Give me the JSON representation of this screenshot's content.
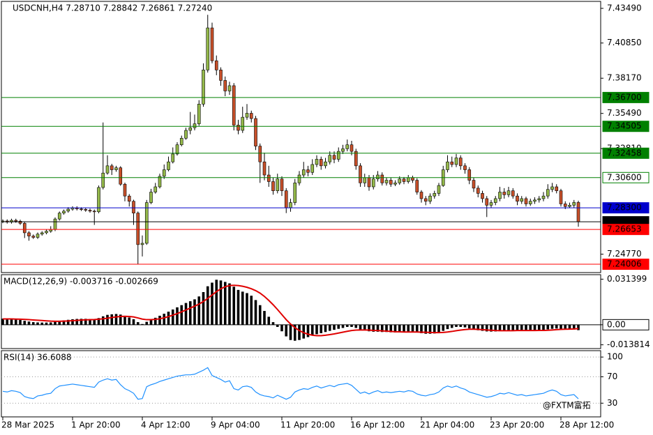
{
  "chart_data": [
    {
      "type": "candlestick",
      "title": "USDCNH,H4  7.28710 7.28842 7.26861 7.27240",
      "watermark": "@FXTM富拓",
      "categories": [
        "28 Mar 2025",
        null,
        null,
        null,
        null,
        null,
        null,
        null,
        null,
        null,
        null,
        null,
        null,
        null,
        null,
        null,
        "1 Apr 20:00",
        null,
        null,
        null,
        null,
        null,
        null,
        null,
        null,
        null,
        null,
        null,
        null,
        null,
        null,
        null,
        "4 Apr 12:00",
        null,
        null,
        null,
        null,
        null,
        null,
        null,
        null,
        null,
        null,
        null,
        null,
        null,
        null,
        null,
        "9 Apr 04:00",
        null,
        null,
        null,
        null,
        null,
        null,
        null,
        null,
        null,
        null,
        null,
        null,
        null,
        null,
        null,
        "11 Apr 20:00",
        null,
        null,
        null,
        null,
        null,
        null,
        null,
        null,
        null,
        null,
        null,
        null,
        null,
        null,
        null,
        "16 Apr 12:00",
        null,
        null,
        null,
        null,
        null,
        null,
        null,
        null,
        null,
        null,
        null,
        null,
        null,
        null,
        null,
        "21 Apr 04:00",
        null,
        null,
        null,
        null,
        null,
        null,
        null,
        null,
        null,
        null,
        null,
        null,
        null,
        null,
        null,
        "23 Apr 20:00",
        null,
        null,
        null,
        null,
        null,
        null,
        null,
        null,
        null,
        null,
        null,
        null,
        null,
        null,
        null,
        "28 Apr 12:00",
        null,
        null,
        null,
        null
      ],
      "open": [
        7.2725,
        7.273,
        7.2722,
        7.2735,
        7.2728,
        7.2712,
        7.264,
        7.2615,
        7.2605,
        7.263,
        7.264,
        7.2652,
        7.2665,
        7.2745,
        7.279,
        7.2805,
        7.282,
        7.283,
        7.2822,
        7.2818,
        7.2812,
        7.2805,
        7.28,
        7.2985,
        7.3095,
        7.315,
        7.312,
        7.3135,
        7.301,
        7.292,
        7.288,
        7.279,
        7.255,
        7.256,
        7.287,
        7.295,
        7.299,
        7.307,
        7.312,
        7.318,
        7.324,
        7.331,
        7.336,
        7.342,
        7.344,
        7.347,
        7.362,
        7.388,
        7.42,
        7.395,
        7.388,
        7.38,
        7.372,
        7.376,
        7.346,
        7.342,
        7.352,
        7.355,
        7.351,
        7.33,
        7.318,
        7.308,
        7.303,
        7.296,
        7.305,
        7.296,
        7.283,
        7.287,
        7.302,
        7.308,
        7.312,
        7.31,
        7.316,
        7.32,
        7.315,
        7.318,
        7.323,
        7.32,
        7.326,
        7.328,
        7.331,
        7.326,
        7.315,
        7.302,
        7.306,
        7.299,
        7.305,
        7.308,
        7.302,
        7.304,
        7.301,
        7.302,
        7.305,
        7.303,
        7.306,
        7.304,
        7.295,
        7.29,
        7.288,
        7.292,
        7.294,
        7.3,
        7.312,
        7.318,
        7.316,
        7.321,
        7.315,
        7.312,
        7.304,
        7.298,
        7.294,
        7.29,
        7.285,
        7.287,
        7.29,
        7.295,
        7.293,
        7.296,
        7.292,
        7.288,
        7.29,
        7.286,
        7.288,
        7.289,
        7.29,
        7.292,
        7.297,
        7.299,
        7.296,
        7.286,
        7.284,
        7.285,
        7.2871
      ],
      "high": [
        7.2742,
        7.2742,
        7.2747,
        7.2747,
        7.274,
        7.2724,
        7.2652,
        7.2627,
        7.2642,
        7.2652,
        7.2664,
        7.269,
        7.2757,
        7.2802,
        7.2817,
        7.2835,
        7.2842,
        7.2842,
        7.2834,
        7.283,
        7.2824,
        7.2817,
        7.3,
        7.348,
        7.323,
        7.3165,
        7.315,
        7.3147,
        7.3022,
        7.2935,
        7.2892,
        7.2802,
        7.262,
        7.289,
        7.2975,
        7.302,
        7.309,
        7.316,
        7.322,
        7.329,
        7.333,
        7.338,
        7.344,
        7.356,
        7.354,
        7.365,
        7.393,
        7.43,
        7.424,
        7.399,
        7.39,
        7.383,
        7.379,
        7.378,
        7.35,
        7.36,
        7.362,
        7.357,
        7.353,
        7.332,
        7.325,
        7.315,
        7.306,
        7.309,
        7.307,
        7.298,
        7.29,
        7.305,
        7.311,
        7.318,
        7.315,
        7.32,
        7.323,
        7.322,
        7.321,
        7.326,
        7.326,
        7.329,
        7.331,
        7.335,
        7.334,
        7.328,
        7.317,
        7.309,
        7.308,
        7.308,
        7.311,
        7.31,
        7.306,
        7.306,
        7.304,
        7.307,
        7.3065,
        7.308,
        7.3075,
        7.3055,
        7.2965,
        7.292,
        7.294,
        7.296,
        7.302,
        7.315,
        7.323,
        7.322,
        7.324,
        7.323,
        7.317,
        7.314,
        7.306,
        7.3,
        7.296,
        7.292,
        7.289,
        7.292,
        7.299,
        7.298,
        7.299,
        7.298,
        7.294,
        7.292,
        7.2915,
        7.29,
        7.291,
        7.292,
        7.295,
        7.301,
        7.302,
        7.301,
        7.2975,
        7.288,
        7.287,
        7.289,
        7.28842
      ],
      "low": [
        7.2713,
        7.271,
        7.271,
        7.2716,
        7.27,
        7.26,
        7.258,
        7.2593,
        7.2593,
        7.2618,
        7.2628,
        7.264,
        7.2653,
        7.2733,
        7.2778,
        7.2793,
        7.2808,
        7.281,
        7.2806,
        7.28,
        7.2793,
        7.27,
        7.2788,
        7.297,
        7.3083,
        7.308,
        7.3105,
        7.2998,
        7.288,
        7.284,
        7.27,
        7.24,
        7.246,
        7.2548,
        7.2858,
        7.2938,
        7.2978,
        7.305,
        7.3108,
        7.3168,
        7.3228,
        7.3298,
        7.3348,
        7.339,
        7.342,
        7.3455,
        7.36,
        7.386,
        7.393,
        7.384,
        7.376,
        7.368,
        7.369,
        7.342,
        7.339,
        7.34,
        7.35,
        7.348,
        7.327,
        7.302,
        7.304,
        7.299,
        7.293,
        7.294,
        7.292,
        7.279,
        7.28,
        7.285,
        7.3,
        7.306,
        7.307,
        7.308,
        7.314,
        7.312,
        7.313,
        7.316,
        7.317,
        7.318,
        7.324,
        7.326,
        7.323,
        7.312,
        7.299,
        7.299,
        7.296,
        7.297,
        7.303,
        7.3,
        7.3,
        7.299,
        7.2995,
        7.3005,
        7.301,
        7.3015,
        7.302,
        7.293,
        7.287,
        7.285,
        7.286,
        7.29,
        7.292,
        7.299,
        7.31,
        7.314,
        7.314,
        7.312,
        7.309,
        7.301,
        7.295,
        7.291,
        7.287,
        7.276,
        7.283,
        7.285,
        7.288,
        7.29,
        7.291,
        7.29,
        7.285,
        7.286,
        7.284,
        7.2845,
        7.286,
        7.287,
        7.288,
        7.29,
        7.295,
        7.294,
        7.284,
        7.282,
        7.283,
        7.283,
        7.26861
      ],
      "close": [
        7.273,
        7.2722,
        7.2735,
        7.2728,
        7.2712,
        7.264,
        7.2615,
        7.2605,
        7.263,
        7.264,
        7.2652,
        7.2665,
        7.2745,
        7.279,
        7.2805,
        7.282,
        7.283,
        7.2822,
        7.2818,
        7.2812,
        7.2805,
        7.28,
        7.2985,
        7.3095,
        7.315,
        7.312,
        7.3135,
        7.301,
        7.292,
        7.288,
        7.279,
        7.255,
        7.256,
        7.287,
        7.295,
        7.299,
        7.307,
        7.312,
        7.318,
        7.324,
        7.331,
        7.336,
        7.342,
        7.344,
        7.347,
        7.362,
        7.388,
        7.42,
        7.395,
        7.388,
        7.38,
        7.372,
        7.376,
        7.346,
        7.342,
        7.352,
        7.355,
        7.351,
        7.33,
        7.318,
        7.308,
        7.303,
        7.296,
        7.305,
        7.296,
        7.283,
        7.287,
        7.302,
        7.308,
        7.312,
        7.31,
        7.316,
        7.32,
        7.315,
        7.318,
        7.323,
        7.32,
        7.326,
        7.328,
        7.331,
        7.326,
        7.315,
        7.302,
        7.306,
        7.299,
        7.305,
        7.308,
        7.302,
        7.304,
        7.301,
        7.302,
        7.305,
        7.303,
        7.306,
        7.304,
        7.295,
        7.29,
        7.288,
        7.292,
        7.294,
        7.3,
        7.312,
        7.318,
        7.316,
        7.321,
        7.315,
        7.312,
        7.304,
        7.298,
        7.294,
        7.29,
        7.285,
        7.287,
        7.29,
        7.295,
        7.293,
        7.296,
        7.292,
        7.288,
        7.29,
        7.286,
        7.288,
        7.289,
        7.29,
        7.292,
        7.297,
        7.299,
        7.296,
        7.286,
        7.284,
        7.285,
        7.2871,
        7.2724
      ],
      "up_color": "#94b84a",
      "down_color": "#c8502a",
      "ylim": [
        7.2337,
        7.4402
      ],
      "yticks": [
        {
          "value": 7.4349,
          "label": "7.43490"
        },
        {
          "value": 7.4085,
          "label": "7.40850"
        },
        {
          "value": 7.3817,
          "label": "7.38170"
        },
        {
          "value": 7.3549,
          "label": "7.35490"
        },
        {
          "value": 7.3281,
          "label": "7.32810"
        },
        {
          "value": 7.2477,
          "label": "7.24770"
        }
      ],
      "levels": [
        {
          "value": 7.367,
          "label": "7.36700",
          "color": "#008000",
          "style": "filled"
        },
        {
          "value": 7.34505,
          "label": "7.34505",
          "color": "#008000",
          "style": "filled"
        },
        {
          "value": 7.32458,
          "label": "7.32458",
          "color": "#008000",
          "style": "filled"
        },
        {
          "value": 7.306,
          "label": "7.30600",
          "color": "#008000",
          "style": "outline"
        },
        {
          "value": 7.283,
          "label": "7.28300",
          "color": "#0000cc",
          "style": "filled"
        },
        {
          "value": 7.2724,
          "label": "7.27240",
          "color": "#000000",
          "style": "filled"
        },
        {
          "value": 7.26653,
          "label": "7.26653",
          "color": "#ff0000",
          "style": "filled"
        },
        {
          "value": 7.24006,
          "label": "7.24006",
          "color": "#ff0000",
          "style": "filled"
        }
      ]
    },
    {
      "type": "macd",
      "title": "MACD(12,26,9) -0.003716 -0.002669",
      "histogram": [
        0.0042,
        0.004,
        0.0038,
        0.0036,
        0.0033,
        0.0027,
        0.0022,
        0.0018,
        0.0016,
        0.0015,
        0.0015,
        0.0016,
        0.002,
        0.0025,
        0.003,
        0.0034,
        0.0038,
        0.004,
        0.0041,
        0.0041,
        0.004,
        0.0038,
        0.0046,
        0.0058,
        0.0068,
        0.0072,
        0.0074,
        0.007,
        0.006,
        0.005,
        0.0038,
        0.0018,
        0.0005,
        0.002,
        0.0035,
        0.0048,
        0.0062,
        0.0076,
        0.009,
        0.0105,
        0.012,
        0.0135,
        0.015,
        0.0162,
        0.0175,
        0.0195,
        0.0225,
        0.0265,
        0.029,
        0.031,
        0.0305,
        0.0295,
        0.0285,
        0.0262,
        0.024,
        0.0228,
        0.0218,
        0.02,
        0.017,
        0.0135,
        0.0095,
        0.0055,
        0.0018,
        -0.0015,
        -0.0045,
        -0.008,
        -0.0105,
        -0.011,
        -0.0105,
        -0.0095,
        -0.0085,
        -0.0075,
        -0.0065,
        -0.0058,
        -0.005,
        -0.0042,
        -0.0035,
        -0.0028,
        -0.0022,
        -0.0015,
        -0.0015,
        -0.0022,
        -0.0032,
        -0.0038,
        -0.0045,
        -0.0048,
        -0.0048,
        -0.005,
        -0.005,
        -0.0052,
        -0.0053,
        -0.0052,
        -0.005,
        -0.0048,
        -0.0048,
        -0.0052,
        -0.0058,
        -0.0062,
        -0.0062,
        -0.006,
        -0.0055,
        -0.0042,
        -0.003,
        -0.0022,
        -0.0015,
        -0.0015,
        -0.0018,
        -0.0025,
        -0.0032,
        -0.0038,
        -0.0042,
        -0.0046,
        -0.0047,
        -0.0046,
        -0.0043,
        -0.0041,
        -0.0038,
        -0.0038,
        -0.004,
        -0.004,
        -0.0041,
        -0.004,
        -0.0039,
        -0.0038,
        -0.0036,
        -0.0032,
        -0.0028,
        -0.0026,
        -0.003,
        -0.0033,
        -0.0034,
        -0.0033,
        -0.003716
      ],
      "signal": [
        0.004,
        0.004,
        0.004,
        0.0039,
        0.0038,
        0.0037,
        0.0035,
        0.0033,
        0.0031,
        0.0029,
        0.0027,
        0.0025,
        0.0024,
        0.0024,
        0.0025,
        0.0026,
        0.0028,
        0.003,
        0.0032,
        0.0034,
        0.0035,
        0.0036,
        0.0038,
        0.0041,
        0.0045,
        0.005,
        0.0054,
        0.0057,
        0.0058,
        0.0057,
        0.0054,
        0.0047,
        0.0039,
        0.0035,
        0.0035,
        0.0037,
        0.0041,
        0.0048,
        0.0056,
        0.0066,
        0.0077,
        0.0089,
        0.0102,
        0.0115,
        0.0128,
        0.0142,
        0.016,
        0.0182,
        0.0205,
        0.0228,
        0.0248,
        0.0262,
        0.027,
        0.0272,
        0.027,
        0.0265,
        0.0258,
        0.0248,
        0.0235,
        0.0218,
        0.0195,
        0.0168,
        0.0138,
        0.0105,
        0.007,
        0.0035,
        0.0005,
        -0.002,
        -0.004,
        -0.0055,
        -0.0065,
        -0.0072,
        -0.0075,
        -0.0075,
        -0.0072,
        -0.0068,
        -0.0063,
        -0.0057,
        -0.0051,
        -0.0045,
        -0.004,
        -0.0037,
        -0.0036,
        -0.0036,
        -0.0037,
        -0.0039,
        -0.004,
        -0.0042,
        -0.0044,
        -0.0046,
        -0.0048,
        -0.0049,
        -0.005,
        -0.005,
        -0.005,
        -0.005,
        -0.0051,
        -0.0052,
        -0.0053,
        -0.0054,
        -0.0054,
        -0.0053,
        -0.005,
        -0.0046,
        -0.0041,
        -0.0037,
        -0.0033,
        -0.0031,
        -0.0031,
        -0.0032,
        -0.0034,
        -0.0036,
        -0.0038,
        -0.004,
        -0.0041,
        -0.0041,
        -0.0041,
        -0.0041,
        -0.004,
        -0.004,
        -0.004,
        -0.004,
        -0.004,
        -0.0039,
        -0.0039,
        -0.0038,
        -0.0036,
        -0.0034,
        -0.0032,
        -0.0031,
        -0.003,
        -0.0029,
        -0.002669
      ],
      "histogram_color": "#000000",
      "signal_color": "#e00000",
      "ylim": [
        -0.0164,
        0.0345
      ],
      "yticks": [
        0.031399,
        {
          "value": 0,
          "label": "0.00"
        },
        -0.013814
      ]
    },
    {
      "type": "line",
      "title": "RSI(14) 36.6088",
      "values": [
        48,
        47,
        49,
        48,
        46,
        40,
        38,
        37,
        41,
        42,
        44,
        45,
        52,
        56,
        57,
        58,
        59,
        58,
        57,
        56,
        55,
        54,
        62,
        65,
        67,
        65,
        66,
        58,
        52,
        49,
        45,
        36,
        37,
        55,
        58,
        60,
        63,
        65,
        67,
        69,
        71,
        72,
        73,
        73,
        74,
        77,
        80,
        84,
        72,
        69,
        66,
        62,
        64,
        52,
        50,
        55,
        56,
        54,
        47,
        43,
        41,
        40,
        38,
        42,
        39,
        36,
        39,
        47,
        50,
        52,
        51,
        54,
        56,
        53,
        55,
        57,
        55,
        58,
        59,
        60,
        57,
        51,
        45,
        47,
        44,
        47,
        49,
        46,
        47,
        46,
        47,
        48,
        47,
        49,
        48,
        44,
        42,
        41,
        43,
        44,
        47,
        53,
        56,
        54,
        56,
        53,
        51,
        47,
        45,
        43,
        41,
        39,
        40,
        42,
        45,
        44,
        46,
        44,
        42,
        43,
        41,
        42,
        43,
        44,
        45,
        48,
        50,
        48,
        43,
        41,
        42,
        43,
        36.6088
      ],
      "color": "#1e90ff",
      "ylim": [
        9.2,
        109.7
      ],
      "yticks": [
        100,
        70,
        30
      ],
      "grid": "dotted"
    }
  ]
}
